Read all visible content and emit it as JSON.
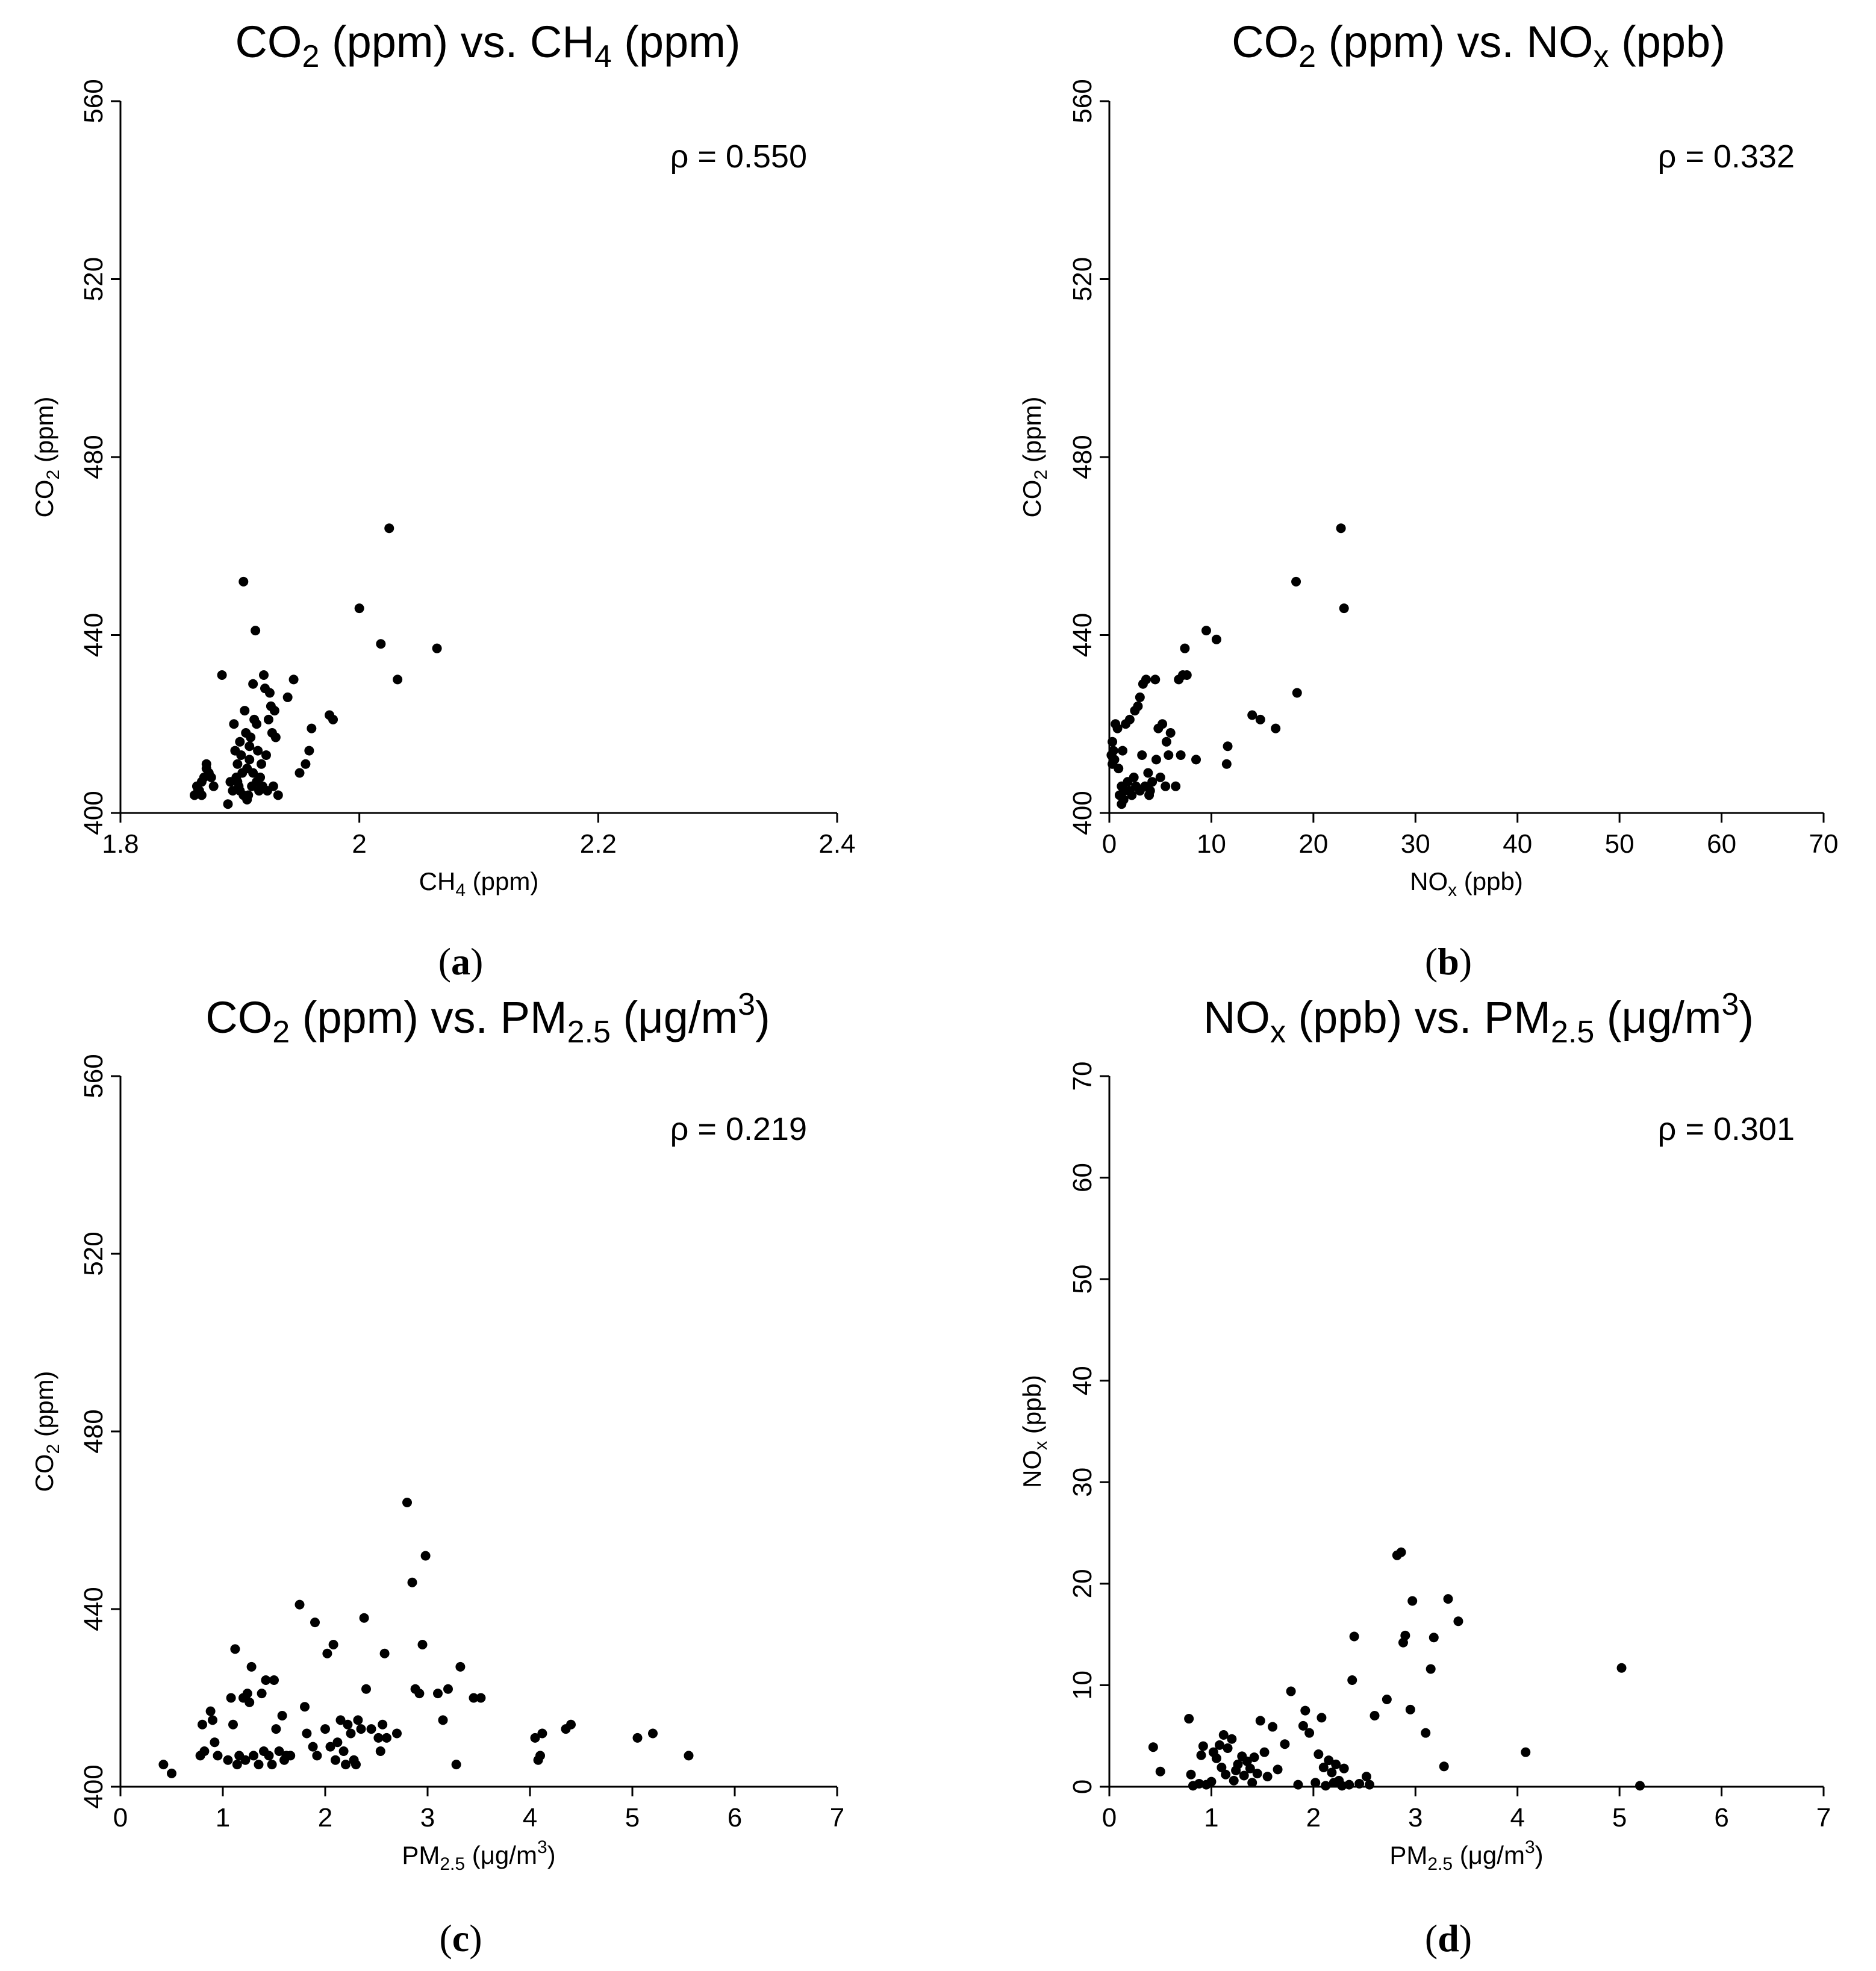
{
  "chart_data": [
    {
      "id": "a",
      "type": "scatter",
      "panel_label": "a",
      "title": {
        "pre": "CO",
        "sub": "2",
        "mid": " (ppm) vs. CH",
        "sub2": "4",
        "post": " (ppm)",
        "sup": ""
      },
      "annotation": "ρ = 0.550",
      "xlabel": {
        "pre": "CH",
        "sub": "4",
        "post": " (ppm)",
        "sup": "",
        "tail": ""
      },
      "ylabel": {
        "pre": "CO",
        "sub": "2",
        "post": " (ppm)"
      },
      "xlim": [
        1.8,
        2.4
      ],
      "ylim": [
        400,
        560
      ],
      "xticks": [
        1.8,
        2,
        2.2,
        2.4
      ],
      "xtick_labels": [
        "1.8",
        "2",
        "2.2",
        "2.4"
      ],
      "yticks": [
        400,
        440,
        480,
        520,
        560
      ],
      "ytick_labels": [
        "400",
        "440",
        "480",
        "520",
        "560"
      ],
      "points": [
        [
          1.862,
          404
        ],
        [
          1.864,
          406
        ],
        [
          1.866,
          405
        ],
        [
          1.868,
          407
        ],
        [
          1.87,
          408
        ],
        [
          1.872,
          410
        ],
        [
          1.874,
          409
        ],
        [
          1.876,
          408
        ],
        [
          1.878,
          406
        ],
        [
          1.872,
          411
        ],
        [
          1.868,
          404
        ],
        [
          1.865,
          405
        ],
        [
          1.885,
          431
        ],
        [
          1.89,
          402
        ],
        [
          1.892,
          407
        ],
        [
          1.894,
          405
        ],
        [
          1.895,
          420
        ],
        [
          1.896,
          414
        ],
        [
          1.898,
          411
        ],
        [
          1.899,
          406
        ],
        [
          1.9,
          416
        ],
        [
          1.901,
          413
        ],
        [
          1.902,
          409
        ],
        [
          1.903,
          452
        ],
        [
          1.904,
          423
        ],
        [
          1.905,
          418
        ],
        [
          1.906,
          410
        ],
        [
          1.907,
          404
        ],
        [
          1.908,
          412
        ],
        [
          1.909,
          417
        ],
        [
          1.91,
          406
        ],
        [
          1.911,
          429
        ],
        [
          1.912,
          421
        ],
        [
          1.913,
          441
        ],
        [
          1.914,
          420
        ],
        [
          1.915,
          414
        ],
        [
          1.916,
          405
        ],
        [
          1.917,
          408
        ],
        [
          1.918,
          411
        ],
        [
          1.919,
          406
        ],
        [
          1.92,
          431
        ],
        [
          1.921,
          428
        ],
        [
          1.922,
          413
        ],
        [
          1.923,
          405
        ],
        [
          1.924,
          421
        ],
        [
          1.925,
          427
        ],
        [
          1.926,
          424
        ],
        [
          1.927,
          418
        ],
        [
          1.928,
          406
        ],
        [
          1.929,
          423
        ],
        [
          1.93,
          417
        ],
        [
          1.932,
          404
        ],
        [
          1.94,
          426
        ],
        [
          1.945,
          430
        ],
        [
          1.95,
          409
        ],
        [
          1.955,
          411
        ],
        [
          1.958,
          414
        ],
        [
          1.96,
          419
        ],
        [
          1.975,
          422
        ],
        [
          1.978,
          421
        ],
        [
          2.0,
          446
        ],
        [
          2.018,
          438
        ],
        [
          2.025,
          464
        ],
        [
          2.032,
          430
        ],
        [
          2.065,
          437
        ],
        [
          1.898,
          407
        ],
        [
          1.903,
          404
        ],
        [
          1.906,
          403
        ],
        [
          1.908,
          415
        ],
        [
          1.911,
          409
        ],
        [
          1.914,
          407
        ],
        [
          1.897,
          408
        ],
        [
          1.9,
          405
        ]
      ]
    },
    {
      "id": "b",
      "type": "scatter",
      "panel_label": "b",
      "title": {
        "pre": "CO",
        "sub": "2",
        "mid": " (ppm) vs. NO",
        "sub2": "x",
        "post": " (ppb)",
        "sup": ""
      },
      "annotation": "ρ = 0.332",
      "xlabel": {
        "pre": "NO",
        "sub": "x",
        "post": " (ppb)",
        "sup": "",
        "tail": ""
      },
      "ylabel": {
        "pre": "CO",
        "sub": "2",
        "post": " (ppm)"
      },
      "xlim": [
        0,
        70
      ],
      "ylim": [
        400,
        560
      ],
      "xticks": [
        0,
        10,
        20,
        30,
        40,
        50,
        60,
        70
      ],
      "xtick_labels": [
        "0",
        "10",
        "20",
        "30",
        "40",
        "50",
        "60",
        "70"
      ],
      "yticks": [
        400,
        440,
        480,
        520,
        560
      ],
      "ytick_labels": [
        "400",
        "440",
        "480",
        "520",
        "560"
      ],
      "points": [
        [
          0.2,
          413
        ],
        [
          0.3,
          416
        ],
        [
          0.3,
          411
        ],
        [
          0.4,
          414
        ],
        [
          0.5,
          412
        ],
        [
          0.6,
          420
        ],
        [
          0.8,
          419
        ],
        [
          1.0,
          404
        ],
        [
          1.2,
          406
        ],
        [
          1.4,
          403
        ],
        [
          1.5,
          405
        ],
        [
          1.6,
          420
        ],
        [
          1.8,
          407
        ],
        [
          2.0,
          405
        ],
        [
          2.2,
          404
        ],
        [
          2.4,
          408
        ],
        [
          2.5,
          423
        ],
        [
          2.6,
          406
        ],
        [
          2.8,
          424
        ],
        [
          3.0,
          405
        ],
        [
          3.0,
          426
        ],
        [
          3.2,
          413
        ],
        [
          3.3,
          429
        ],
        [
          3.5,
          406
        ],
        [
          3.6,
          430
        ],
        [
          3.8,
          409
        ],
        [
          4.0,
          405
        ],
        [
          4.2,
          407
        ],
        [
          4.5,
          430
        ],
        [
          4.6,
          412
        ],
        [
          4.8,
          419
        ],
        [
          5.0,
          408
        ],
        [
          5.2,
          420
        ],
        [
          5.5,
          406
        ],
        [
          5.6,
          416
        ],
        [
          5.8,
          413
        ],
        [
          6.0,
          418
        ],
        [
          6.5,
          406
        ],
        [
          6.8,
          430
        ],
        [
          7.0,
          413
        ],
        [
          7.2,
          431
        ],
        [
          7.4,
          437
        ],
        [
          7.6,
          431
        ],
        [
          8.5,
          412
        ],
        [
          9.5,
          441
        ],
        [
          10.5,
          439
        ],
        [
          11.5,
          411
        ],
        [
          11.6,
          415
        ],
        [
          14.0,
          422
        ],
        [
          14.8,
          421
        ],
        [
          16.3,
          419
        ],
        [
          18.4,
          427
        ],
        [
          18.3,
          452
        ],
        [
          22.7,
          464
        ],
        [
          23.0,
          446
        ],
        [
          2.0,
          421
        ],
        [
          1.2,
          402
        ],
        [
          0.9,
          410
        ],
        [
          3.9,
          404
        ],
        [
          1.3,
          414
        ]
      ]
    },
    {
      "id": "c",
      "type": "scatter",
      "panel_label": "c",
      "title": {
        "pre": "CO",
        "sub": "2",
        "mid": " (ppm) vs. PM",
        "sub2": "2.5",
        "post": " (μg/m",
        "sup": "3"
      },
      "annotation": "ρ = 0.219",
      "xlabel": {
        "pre": "PM",
        "sub": "2.5",
        "post": " (μg/m",
        "sup": "3",
        "tail": ")"
      },
      "ylabel": {
        "pre": "CO",
        "sub": "2",
        "post": " (ppm)"
      },
      "xlim": [
        0,
        7
      ],
      "ylim": [
        400,
        560
      ],
      "xticks": [
        0,
        1,
        2,
        3,
        4,
        5,
        6,
        7
      ],
      "xtick_labels": [
        "0",
        "1",
        "2",
        "3",
        "4",
        "5",
        "6",
        "7"
      ],
      "yticks": [
        400,
        440,
        480,
        520,
        560
      ],
      "ytick_labels": [
        "400",
        "440",
        "480",
        "520",
        "560"
      ],
      "points": [
        [
          0.42,
          405
        ],
        [
          0.5,
          403
        ],
        [
          0.78,
          407
        ],
        [
          0.8,
          414
        ],
        [
          0.82,
          408
        ],
        [
          0.88,
          417
        ],
        [
          0.9,
          415
        ],
        [
          0.92,
          410
        ],
        [
          0.95,
          407
        ],
        [
          1.05,
          406
        ],
        [
          1.08,
          420
        ],
        [
          1.1,
          414
        ],
        [
          1.12,
          431
        ],
        [
          1.14,
          405
        ],
        [
          1.16,
          407
        ],
        [
          1.2,
          420
        ],
        [
          1.22,
          406
        ],
        [
          1.24,
          421
        ],
        [
          1.26,
          419
        ],
        [
          1.28,
          427
        ],
        [
          1.3,
          407
        ],
        [
          1.35,
          405
        ],
        [
          1.38,
          421
        ],
        [
          1.4,
          408
        ],
        [
          1.42,
          424
        ],
        [
          1.45,
          407
        ],
        [
          1.48,
          405
        ],
        [
          1.5,
          424
        ],
        [
          1.52,
          413
        ],
        [
          1.55,
          408
        ],
        [
          1.58,
          416
        ],
        [
          1.6,
          406
        ],
        [
          1.62,
          407
        ],
        [
          1.66,
          407
        ],
        [
          1.75,
          441
        ],
        [
          1.8,
          418
        ],
        [
          1.82,
          412
        ],
        [
          1.88,
          409
        ],
        [
          1.9,
          437
        ],
        [
          1.92,
          407
        ],
        [
          2.0,
          413
        ],
        [
          2.02,
          430
        ],
        [
          2.05,
          409
        ],
        [
          2.08,
          432
        ],
        [
          2.1,
          406
        ],
        [
          2.12,
          410
        ],
        [
          2.15,
          415
        ],
        [
          2.18,
          408
        ],
        [
          2.2,
          405
        ],
        [
          2.22,
          414
        ],
        [
          2.25,
          412
        ],
        [
          2.28,
          406
        ],
        [
          2.3,
          405
        ],
        [
          2.32,
          415
        ],
        [
          2.35,
          413
        ],
        [
          2.38,
          438
        ],
        [
          2.4,
          422
        ],
        [
          2.45,
          413
        ],
        [
          2.52,
          411
        ],
        [
          2.54,
          408
        ],
        [
          2.56,
          414
        ],
        [
          2.58,
          430
        ],
        [
          2.6,
          411
        ],
        [
          2.7,
          412
        ],
        [
          2.8,
          464
        ],
        [
          2.85,
          446
        ],
        [
          2.88,
          422
        ],
        [
          2.92,
          421
        ],
        [
          2.95,
          432
        ],
        [
          2.98,
          452
        ],
        [
          3.1,
          421
        ],
        [
          3.15,
          415
        ],
        [
          3.2,
          422
        ],
        [
          3.28,
          405
        ],
        [
          3.32,
          427
        ],
        [
          3.45,
          420
        ],
        [
          3.52,
          420
        ],
        [
          4.05,
          411
        ],
        [
          4.08,
          406
        ],
        [
          4.1,
          407
        ],
        [
          4.12,
          412
        ],
        [
          4.35,
          413
        ],
        [
          4.4,
          414
        ],
        [
          5.05,
          411
        ],
        [
          5.2,
          412
        ],
        [
          5.55,
          407
        ]
      ]
    },
    {
      "id": "d",
      "type": "scatter",
      "panel_label": "d",
      "title": {
        "pre": "NO",
        "sub": "x",
        "mid": " (ppb) vs. PM",
        "sub2": "2.5",
        "post": " (μg/m",
        "sup": "3"
      },
      "annotation": "ρ = 0.301",
      "xlabel": {
        "pre": "PM",
        "sub": "2.5",
        "post": " (μg/m",
        "sup": "3",
        "tail": ")"
      },
      "ylabel": {
        "pre": "NO",
        "sub": "x",
        "post": " (ppb)"
      },
      "xlim": [
        0,
        7
      ],
      "ylim": [
        0,
        70
      ],
      "xticks": [
        0,
        1,
        2,
        3,
        4,
        5,
        6,
        7
      ],
      "xtick_labels": [
        "0",
        "1",
        "2",
        "3",
        "4",
        "5",
        "6",
        "7"
      ],
      "yticks": [
        0,
        10,
        20,
        30,
        40,
        50,
        60,
        70
      ],
      "ytick_labels": [
        "0",
        "10",
        "20",
        "30",
        "40",
        "50",
        "60",
        "70"
      ],
      "points": [
        [
          0.43,
          3.9
        ],
        [
          0.5,
          1.5
        ],
        [
          0.78,
          6.7
        ],
        [
          0.8,
          1.2
        ],
        [
          0.82,
          0.1
        ],
        [
          0.88,
          0.3
        ],
        [
          0.9,
          3.1
        ],
        [
          0.92,
          4.0
        ],
        [
          0.95,
          0.2
        ],
        [
          1.0,
          0.5
        ],
        [
          1.02,
          3.4
        ],
        [
          1.05,
          2.8
        ],
        [
          1.08,
          4.1
        ],
        [
          1.1,
          1.9
        ],
        [
          1.12,
          5.1
        ],
        [
          1.14,
          1.2
        ],
        [
          1.16,
          3.8
        ],
        [
          1.2,
          4.7
        ],
        [
          1.22,
          0.6
        ],
        [
          1.24,
          1.6
        ],
        [
          1.26,
          2.2
        ],
        [
          1.3,
          3.0
        ],
        [
          1.32,
          1.1
        ],
        [
          1.35,
          2.5
        ],
        [
          1.38,
          1.8
        ],
        [
          1.4,
          0.4
        ],
        [
          1.42,
          2.9
        ],
        [
          1.45,
          1.3
        ],
        [
          1.48,
          6.5
        ],
        [
          1.52,
          3.4
        ],
        [
          1.55,
          1.0
        ],
        [
          1.6,
          5.9
        ],
        [
          1.65,
          1.7
        ],
        [
          1.72,
          4.2
        ],
        [
          1.78,
          9.4
        ],
        [
          1.85,
          0.2
        ],
        [
          1.9,
          6.0
        ],
        [
          1.92,
          7.5
        ],
        [
          1.96,
          5.3
        ],
        [
          2.02,
          0.4
        ],
        [
          2.05,
          3.2
        ],
        [
          2.08,
          6.8
        ],
        [
          2.1,
          1.9
        ],
        [
          2.12,
          0.1
        ],
        [
          2.15,
          2.6
        ],
        [
          2.18,
          1.4
        ],
        [
          2.2,
          0.4
        ],
        [
          2.22,
          2.2
        ],
        [
          2.25,
          0.6
        ],
        [
          2.28,
          0.1
        ],
        [
          2.3,
          1.8
        ],
        [
          2.35,
          0.2
        ],
        [
          2.38,
          10.5
        ],
        [
          2.4,
          14.8
        ],
        [
          2.45,
          0.3
        ],
        [
          2.52,
          1.0
        ],
        [
          2.55,
          0.2
        ],
        [
          2.6,
          7.0
        ],
        [
          2.72,
          8.6
        ],
        [
          2.82,
          22.8
        ],
        [
          2.86,
          23.1
        ],
        [
          2.88,
          14.2
        ],
        [
          2.9,
          14.9
        ],
        [
          2.95,
          7.6
        ],
        [
          2.97,
          18.3
        ],
        [
          3.1,
          5.3
        ],
        [
          3.15,
          11.6
        ],
        [
          3.18,
          14.7
        ],
        [
          3.28,
          2.0
        ],
        [
          3.32,
          18.5
        ],
        [
          3.42,
          16.3
        ],
        [
          4.08,
          3.4
        ],
        [
          5.02,
          11.7
        ],
        [
          5.2,
          0.1
        ]
      ]
    }
  ]
}
